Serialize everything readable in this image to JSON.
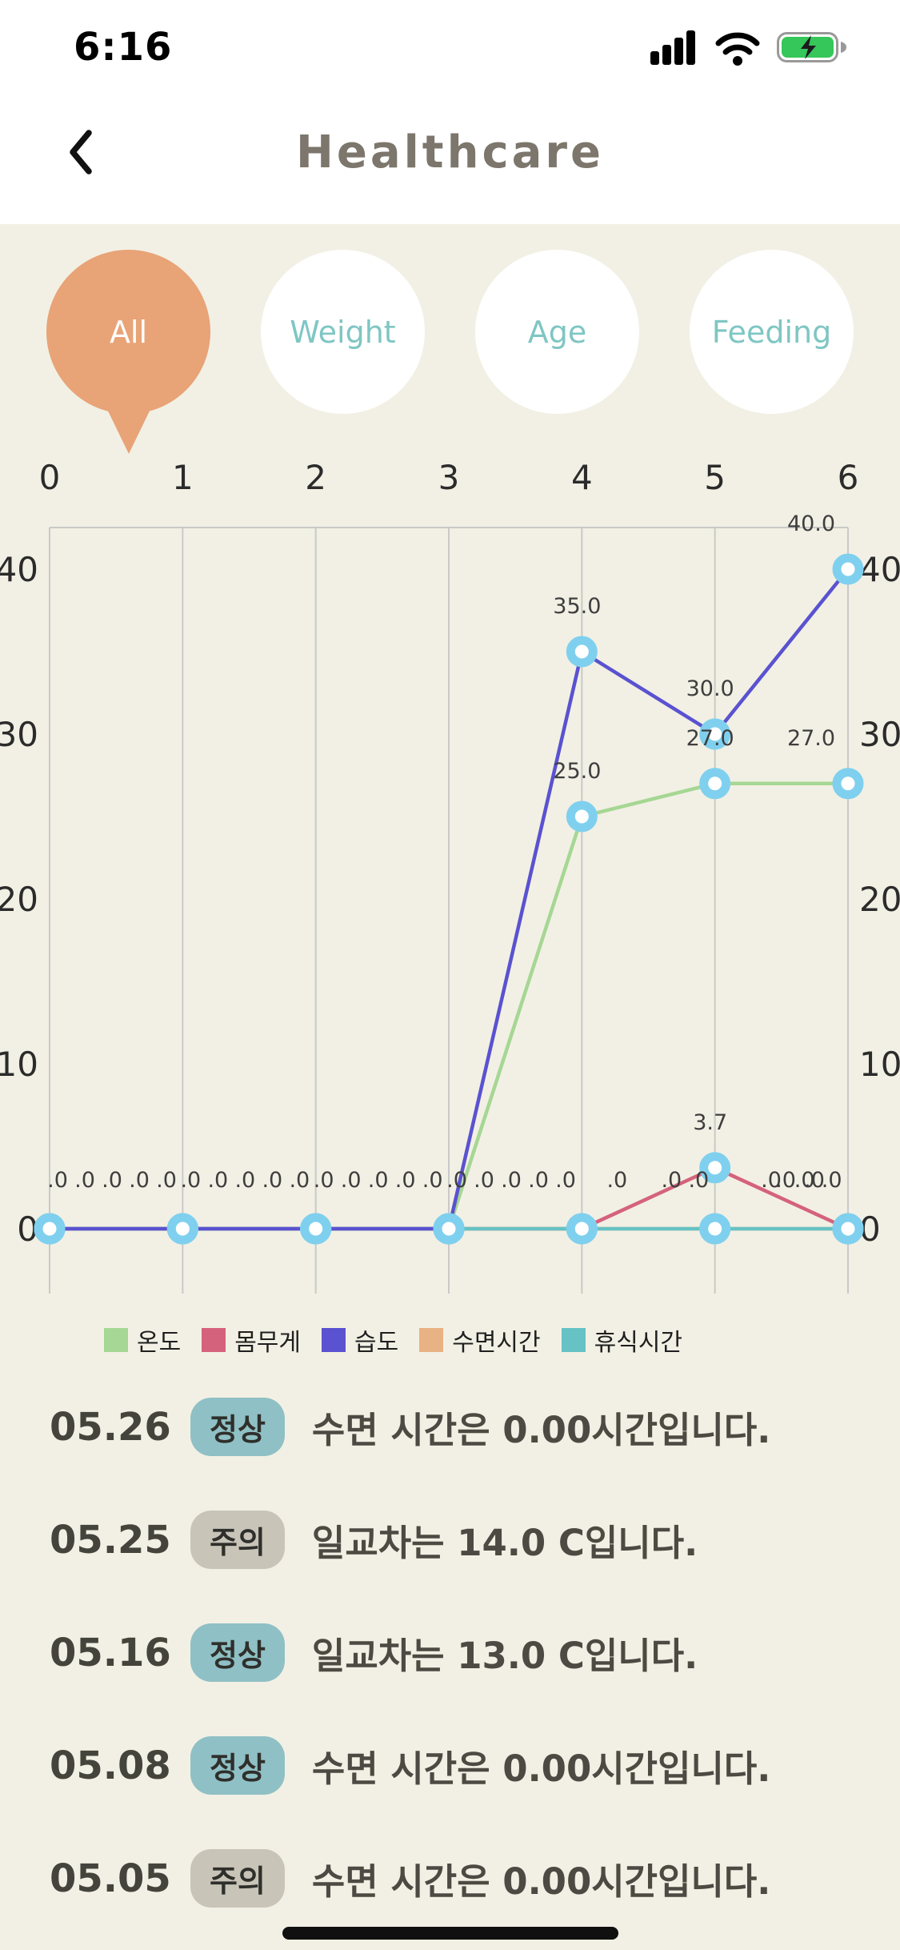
{
  "status_bar": {
    "time": "6:16",
    "icons": [
      "cellular-signal",
      "wifi",
      "battery-charging"
    ]
  },
  "header": {
    "title": "Healthcare",
    "back_icon": "chevron-left"
  },
  "filters": {
    "selected": "All",
    "items": [
      {
        "label": "All",
        "selected": true
      },
      {
        "label": "Weight",
        "selected": false
      },
      {
        "label": "Age",
        "selected": false
      },
      {
        "label": "Feeding",
        "selected": false
      }
    ]
  },
  "colors": {
    "background": "#f2f0e4",
    "selected_bubble": "#e8a377",
    "bubble_text": "#7fc6c3",
    "title_text": "#7c766c",
    "badge_normal": "#8fc0c5",
    "badge_caution": "#c8c4b8",
    "marker_ring": "#7fd0ee",
    "grid_line": "#c9c9c9"
  },
  "chart_data": {
    "type": "line",
    "x": [
      0,
      1,
      2,
      3,
      4,
      5,
      6
    ],
    "x_ticks": [
      "0",
      "1",
      "2",
      "3",
      "4",
      "5",
      "6"
    ],
    "y_ticks": [
      "0",
      "10",
      "20",
      "30",
      "40"
    ],
    "ylim": [
      0,
      42.5
    ],
    "grid": "vertical",
    "legend_position": "bottom",
    "series": [
      {
        "name": "온도",
        "color": "#a6d794",
        "values": [
          0,
          0,
          0,
          0,
          25,
          27,
          27
        ],
        "labels": [
          ".0",
          ".0",
          ".0",
          ".0",
          "25.0",
          "27.0",
          "27.0"
        ]
      },
      {
        "name": "몸무게",
        "color": "#d5627d",
        "values": [
          0,
          0,
          0,
          0,
          0,
          3.7,
          0
        ],
        "labels": [
          ".0",
          ".0",
          ".0",
          ".0",
          ".0",
          "3.7",
          ".0"
        ]
      },
      {
        "name": "습도",
        "color": "#5a52d0",
        "values": [
          0,
          0,
          0,
          0,
          35,
          30,
          40
        ],
        "labels": [
          ".0",
          ".0",
          ".0",
          ".0",
          "35.0",
          "30.0",
          "40.0"
        ]
      },
      {
        "name": "수면시간",
        "color": "#e9b285",
        "values": [
          0,
          0,
          0,
          0,
          0,
          0,
          0
        ],
        "labels": [
          ".0",
          ".0",
          ".0",
          ".0",
          ".0",
          ".0",
          ".0"
        ]
      },
      {
        "name": "휴식시간",
        "color": "#66c2c4",
        "values": [
          0,
          0,
          0,
          0,
          0,
          0,
          0
        ],
        "labels": [
          ".0",
          ".0",
          ".0",
          ".0",
          ".0",
          ".0",
          ".0"
        ]
      }
    ]
  },
  "records": [
    {
      "date": "05.26",
      "badge": "정상",
      "badge_type": "normal",
      "message": "수면 시간은 0.00시간입니다."
    },
    {
      "date": "05.25",
      "badge": "주의",
      "badge_type": "caution",
      "message": "일교차는 14.0  C입니다."
    },
    {
      "date": "05.16",
      "badge": "정상",
      "badge_type": "normal",
      "message": "일교차는 13.0  C입니다."
    },
    {
      "date": "05.08",
      "badge": "정상",
      "badge_type": "normal",
      "message": "수면 시간은 0.00시간입니다."
    },
    {
      "date": "05.05",
      "badge": "주의",
      "badge_type": "caution",
      "message": "수면 시간은 0.00시간입니다."
    }
  ]
}
